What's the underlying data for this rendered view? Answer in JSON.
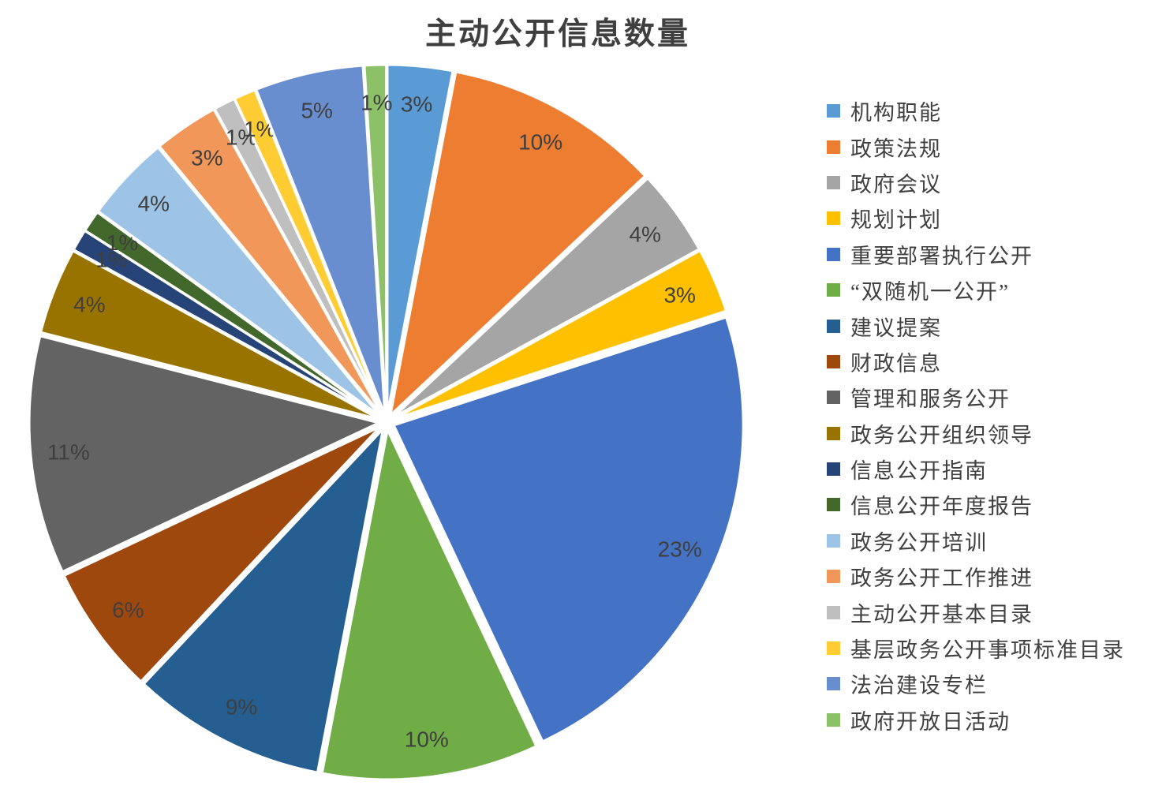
{
  "title": "主动公开信息数量",
  "chart_data": {
    "type": "pie",
    "title": "主动公开信息数量",
    "legend_position": "right",
    "start_angle_deg": 0,
    "direction": "clockwise",
    "exploded": true,
    "background": "#FFFFFF",
    "separator_color": "#FFFFFF",
    "label_color": "#3F3F3F",
    "slices": [
      {
        "label": "机构职能",
        "value_pct": 3,
        "display": "3%",
        "color": "#5B9BD5"
      },
      {
        "label": "政策法规",
        "value_pct": 10,
        "display": "10%",
        "color": "#ED7D31"
      },
      {
        "label": "政府会议",
        "value_pct": 4,
        "display": "4%",
        "color": "#A5A5A5"
      },
      {
        "label": "规划计划",
        "value_pct": 3,
        "display": "3%",
        "color": "#FFC000"
      },
      {
        "label": "重要部署执行公开",
        "value_pct": 23,
        "display": "23%",
        "color": "#4472C4"
      },
      {
        "label": "“双随机一公开”",
        "value_pct": 10,
        "display": "10%",
        "color": "#70AD47"
      },
      {
        "label": "建议提案",
        "value_pct": 9,
        "display": "9%",
        "color": "#255E91"
      },
      {
        "label": "财政信息",
        "value_pct": 6,
        "display": "6%",
        "color": "#9E480E"
      },
      {
        "label": "管理和服务公开",
        "value_pct": 11,
        "display": "11%",
        "color": "#636363"
      },
      {
        "label": "政务公开组织领导",
        "value_pct": 4,
        "display": "4%",
        "color": "#997300"
      },
      {
        "label": "信息公开指南",
        "value_pct": 1,
        "display": "1%",
        "color": "#264478"
      },
      {
        "label": "信息公开年度报告",
        "value_pct": 1,
        "display": "1%",
        "color": "#43682B"
      },
      {
        "label": "政务公开培训",
        "value_pct": 4,
        "display": "4%",
        "color": "#9DC3E6"
      },
      {
        "label": "政务公开工作推进",
        "value_pct": 3,
        "display": "3%",
        "color": "#F1975A"
      },
      {
        "label": "主动公开基本目录",
        "value_pct": 1,
        "display": "1%",
        "color": "#BFBFBF"
      },
      {
        "label": "基层政务公开事项标准目录",
        "value_pct": 1,
        "display": "1%",
        "color": "#FFCD33"
      },
      {
        "label": "法治建设专栏",
        "value_pct": 5,
        "display": "5%",
        "color": "#698ED0"
      },
      {
        "label": "政府开放日活动",
        "value_pct": 1,
        "display": "1%",
        "color": "#8CC168"
      }
    ]
  }
}
